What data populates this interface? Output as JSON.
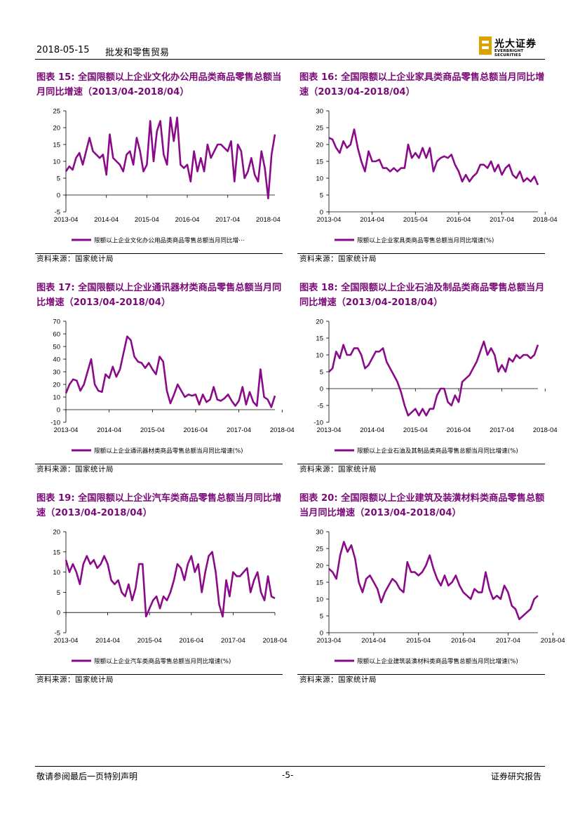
{
  "header": {
    "date": "2018-05-15",
    "sector": "批发和零售贸易",
    "logo_cn": "光大证券",
    "logo_en": "EVERBRIGHT SECURITIES"
  },
  "colors": {
    "series": "#8b0a8a",
    "title": "#7a0a78",
    "logo_gold": "#d9a400"
  },
  "footer": {
    "disclaimer": "敬请参阅最后一页特别声明",
    "page": "-5-",
    "doc_type": "证券研究报告"
  },
  "figures": [
    {
      "title": "图表 15: 全国限额以上企业文化办公用品类商品零售总额当月同比增速（2013/04-2018/04）",
      "source": "资料来源：国家统计局",
      "chart_data": {
        "type": "line",
        "legend": "限额以上企业文化办公用品类商品零售总额当月同比增···",
        "ylim": [
          -5,
          25
        ],
        "yticks": [
          -5,
          0,
          5,
          10,
          15,
          20,
          25
        ],
        "xticks": [
          "2013-04",
          "2014-04",
          "2015-04",
          "2016-04",
          "2017-04",
          "2018-04"
        ],
        "values": [
          7,
          8.5,
          7.5,
          11,
          12.5,
          9,
          13,
          17,
          13,
          12,
          11,
          12,
          6,
          18,
          11,
          10,
          9,
          7,
          12,
          13,
          9,
          17,
          13,
          7,
          9,
          22,
          10,
          19,
          22,
          12,
          9,
          23,
          16,
          23,
          9,
          8,
          9,
          4,
          13,
          7,
          11,
          7,
          15,
          11,
          13,
          15,
          15,
          14,
          13,
          16,
          4,
          15,
          13,
          5,
          7,
          11,
          6,
          4,
          13,
          8,
          -1,
          12,
          18
        ]
      }
    },
    {
      "title": "图表 16: 全国限额以上企业家具类商品零售总额当月同比增速（2013/04-2018/04）",
      "source": "资料来源：国家统计局",
      "chart_data": {
        "type": "line",
        "legend": "限额以上企业家具类商品零售总额当月同比增速(%)",
        "ylim": [
          0,
          30
        ],
        "yticks": [
          0,
          5,
          10,
          15,
          20,
          25,
          30
        ],
        "xticks": [
          "2013-04",
          "2014-04",
          "2015-04",
          "2016-04",
          "2017-04",
          "2018-04"
        ],
        "values": [
          22,
          21.5,
          19,
          17.5,
          21,
          19,
          20,
          24.5,
          19,
          15,
          12,
          18,
          15,
          15,
          15.5,
          13,
          13,
          12,
          13,
          12,
          13,
          13,
          20,
          16,
          17.5,
          16,
          19,
          16,
          19,
          12,
          15,
          16,
          16.5,
          16,
          17,
          14,
          12,
          9,
          11,
          9,
          10.5,
          11.5,
          14,
          14,
          13,
          15,
          12,
          14,
          11,
          13,
          14,
          11,
          10,
          12,
          9,
          10,
          9,
          10.5,
          8
        ]
      }
    },
    {
      "title": "图表 17: 全国限额以上企业通讯器材类商品零售总额当月同比增速（2013/04-2018/04）",
      "source": "资料来源：国家统计局",
      "chart_data": {
        "type": "line",
        "legend": "限额以上企业通讯器材类商品零售总额当月同比增速(%)",
        "ylim": [
          -10,
          70
        ],
        "yticks": [
          -10,
          0,
          10,
          20,
          30,
          40,
          50,
          60,
          70
        ],
        "xticks": [
          "2013-04",
          "2014-04",
          "2015-04",
          "2016-04",
          "2017-04",
          "2018-04"
        ],
        "values": [
          13,
          20,
          24,
          23,
          15,
          20,
          30,
          40,
          20,
          15,
          14,
          28,
          25,
          34,
          26,
          32,
          45,
          58,
          55,
          42,
          38,
          37,
          33,
          37,
          32,
          28,
          42,
          38,
          15,
          5,
          12,
          20,
          15,
          10,
          12,
          11,
          12,
          4,
          12,
          6,
          8,
          18,
          8,
          7,
          9,
          12,
          7,
          3,
          7,
          18,
          4,
          14,
          6,
          3,
          32,
          10,
          8,
          2,
          11
        ]
      }
    },
    {
      "title": "图表 18: 全国限额以上企业石油及制品类商品零售总额当月同比增速（2013/04-2018/04）",
      "source": "资料来源：国家统计局",
      "chart_data": {
        "type": "line",
        "legend": "限额以上企业石油及其制品类商品零售总额当月同比增速(%)",
        "ylim": [
          -10,
          20
        ],
        "yticks": [
          -10,
          -5,
          0,
          5,
          10,
          15,
          20
        ],
        "xticks": [
          "2013-04",
          "2014-04",
          "2015-04",
          "2016-04",
          "2017-04",
          "2018-04"
        ],
        "values": [
          5,
          6,
          11,
          9,
          13,
          10,
          10,
          12,
          12,
          10,
          6,
          7,
          9,
          11,
          11,
          12,
          8,
          6,
          4,
          2,
          -1,
          -5,
          -8,
          -7,
          -6,
          -8,
          -6,
          -8,
          -6,
          -6,
          -2,
          0,
          0,
          -4,
          -5,
          -2,
          -4,
          2,
          3,
          4,
          6,
          8,
          11,
          14,
          10,
          12,
          10,
          5,
          7,
          5,
          9,
          8,
          10,
          9,
          10,
          10,
          9,
          10,
          13
        ]
      }
    },
    {
      "title": "图表 19: 全国限额以上企业汽车类商品零售总额当月同比增速（2013/04-2018/04）",
      "source": "资料来源：国家统计局",
      "chart_data": {
        "type": "line",
        "legend": "限额以上企业汽车类商品零售总额当月同比增速(%)",
        "ylim": [
          -5,
          20
        ],
        "yticks": [
          -5,
          0,
          5,
          10,
          15,
          20
        ],
        "xticks": [
          "2013-04",
          "2014-04",
          "2015-04",
          "2016-04",
          "2017-04",
          "2018-04"
        ],
        "values": [
          13,
          10,
          12,
          10,
          7,
          12,
          14,
          12,
          13,
          11,
          12,
          14,
          12,
          8,
          7,
          8,
          5,
          4,
          7,
          3,
          6,
          12,
          12,
          -1,
          1,
          3,
          4,
          1,
          4,
          3,
          5,
          8,
          12,
          11,
          8,
          12,
          14,
          10,
          12,
          5,
          10,
          14,
          15,
          10,
          2,
          -1,
          8,
          4,
          10,
          9,
          9,
          10,
          11,
          5,
          8,
          10,
          5,
          3,
          9,
          4,
          3.5
        ]
      }
    },
    {
      "title": "图表 20: 全国限额以上企业建筑及装潢材料类商品零售总额当月同比增速（2013/04-2018/04）",
      "source": "资料来源：国家统计局",
      "chart_data": {
        "type": "line",
        "legend": "限额以上企业建筑装潢材料类商品零售总额当月同比增速(%)",
        "ylim": [
          0,
          30
        ],
        "yticks": [
          0,
          5,
          10,
          15,
          20,
          25,
          30
        ],
        "xticks": [
          "2013-04",
          "2014-04",
          "2015-04",
          "2016-04",
          "2017-04",
          "2018-04"
        ],
        "values": [
          19,
          18,
          16,
          23,
          27,
          24,
          26,
          22,
          15,
          12,
          16,
          17,
          15,
          13,
          9,
          12,
          14,
          16,
          15,
          13,
          12,
          21,
          18,
          18,
          17,
          18,
          20,
          23,
          19,
          16,
          14,
          17,
          14,
          15,
          17,
          14,
          12,
          11,
          10,
          13,
          12,
          12,
          18,
          13,
          10,
          11,
          10,
          14,
          12,
          8,
          7,
          4,
          5,
          6,
          7,
          10,
          11
        ]
      }
    }
  ]
}
